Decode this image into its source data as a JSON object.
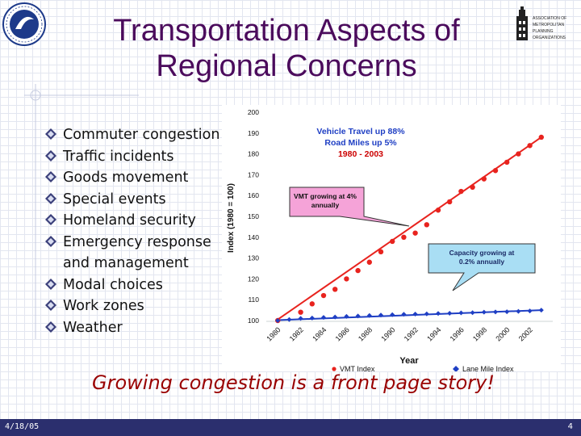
{
  "slide": {
    "title_line1": "Transportation Aspects of",
    "title_line2": "Regional Concerns",
    "bullets": [
      "Commuter congestion",
      "Traffic incidents",
      "Goods movement",
      "Special events",
      "Homeland security",
      "Emergency response and management",
      "Modal choices",
      "Work zones",
      "Weather"
    ],
    "caption": "Growing congestion is a front page story!",
    "footer_date": "4/18/05",
    "page_number": "4",
    "logo_right_text": [
      "ASSOCIATION OF",
      "METROPOLITAN",
      "PLANNING",
      "ORGANIZATIONS"
    ],
    "colors": {
      "title": "#4b0b5c",
      "caption": "#990000",
      "footer": "#2b2f6e",
      "vmt": "#e8231e",
      "lane": "#1f3fc4",
      "callout_pink": "#f5a3d8",
      "callout_blue": "#a9def4",
      "headline_blue": "#1f3fc4",
      "headline_red": "#cc0000"
    }
  },
  "chart_data": {
    "type": "line",
    "ylabel": "Index (1980 = 100)",
    "xlabel": "Year",
    "ylim": [
      100,
      200
    ],
    "yticks": [
      100,
      110,
      120,
      130,
      140,
      150,
      160,
      170,
      180,
      190,
      200
    ],
    "xticks": [
      "1980",
      "1982",
      "1984",
      "1986",
      "1988",
      "1990",
      "1992",
      "1994",
      "1996",
      "1998",
      "2000",
      "2002"
    ],
    "headline": {
      "line1": "Vehicle Travel up 88%",
      "line2": "Road Miles up 5%",
      "line3": "1980 - 2003"
    },
    "annotations": [
      {
        "text": "VMT growing at 4% annually",
        "color": "pink"
      },
      {
        "text": "Capacity growing at 0.2% annually",
        "color": "blue"
      }
    ],
    "series": [
      {
        "name": "VMT Index",
        "marker": "circle",
        "x": [
          1980,
          1981,
          1982,
          1983,
          1984,
          1985,
          1986,
          1987,
          1988,
          1989,
          1990,
          1991,
          1992,
          1993,
          1994,
          1995,
          1996,
          1997,
          1998,
          1999,
          2000,
          2001,
          2002,
          2003
        ],
        "values": [
          100,
          102,
          104,
          108,
          112,
          115,
          120,
          124,
          128,
          133,
          138,
          140,
          142,
          146,
          153,
          157,
          162,
          164,
          168,
          172,
          176,
          180,
          184,
          188
        ]
      },
      {
        "name": "Lane Mile Index",
        "marker": "diamond",
        "x": [
          1980,
          1981,
          1982,
          1983,
          1984,
          1985,
          1986,
          1987,
          1988,
          1989,
          1990,
          1991,
          1992,
          1993,
          1994,
          1995,
          1996,
          1997,
          1998,
          1999,
          2000,
          2001,
          2002,
          2003
        ],
        "values": [
          100,
          100.5,
          101,
          101.2,
          101.5,
          101.7,
          102,
          102.2,
          102.4,
          102.6,
          102.8,
          103,
          103.1,
          103.2,
          103.4,
          103.5,
          103.7,
          103.8,
          104,
          104.1,
          104.2,
          104.4,
          104.6,
          105
        ]
      }
    ]
  }
}
